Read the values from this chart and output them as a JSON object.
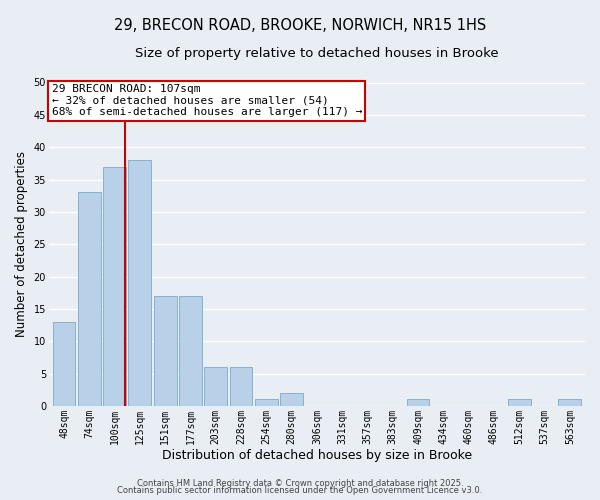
{
  "title": "29, BRECON ROAD, BROOKE, NORWICH, NR15 1HS",
  "subtitle": "Size of property relative to detached houses in Brooke",
  "xlabel": "Distribution of detached houses by size in Brooke",
  "ylabel": "Number of detached properties",
  "bar_color": "#b8d0e8",
  "bar_edge_color": "#7aaacc",
  "background_color": "#e8eef4",
  "grid_color": "#ffffff",
  "bin_labels": [
    "48sqm",
    "74sqm",
    "100sqm",
    "125sqm",
    "151sqm",
    "177sqm",
    "203sqm",
    "228sqm",
    "254sqm",
    "280sqm",
    "306sqm",
    "331sqm",
    "357sqm",
    "383sqm",
    "409sqm",
    "434sqm",
    "460sqm",
    "486sqm",
    "512sqm",
    "537sqm",
    "563sqm"
  ],
  "bar_values": [
    13,
    33,
    37,
    38,
    17,
    17,
    6,
    6,
    1,
    2,
    0,
    0,
    0,
    0,
    1,
    0,
    0,
    0,
    1,
    0,
    1
  ],
  "ylim": [
    0,
    50
  ],
  "yticks": [
    0,
    5,
    10,
    15,
    20,
    25,
    30,
    35,
    40,
    45,
    50
  ],
  "vline_color": "#cc0000",
  "vline_bin_index": 2,
  "annotation_line1": "29 BRECON ROAD: 107sqm",
  "annotation_line2": "← 32% of detached houses are smaller (54)",
  "annotation_line3": "68% of semi-detached houses are larger (117) →",
  "footer_line1": "Contains HM Land Registry data © Crown copyright and database right 2025.",
  "footer_line2": "Contains public sector information licensed under the Open Government Licence v3.0.",
  "title_fontsize": 10.5,
  "subtitle_fontsize": 9.5,
  "ylabel_fontsize": 8.5,
  "xlabel_fontsize": 9,
  "tick_fontsize": 7,
  "annotation_fontsize": 8,
  "footer_fontsize": 6
}
